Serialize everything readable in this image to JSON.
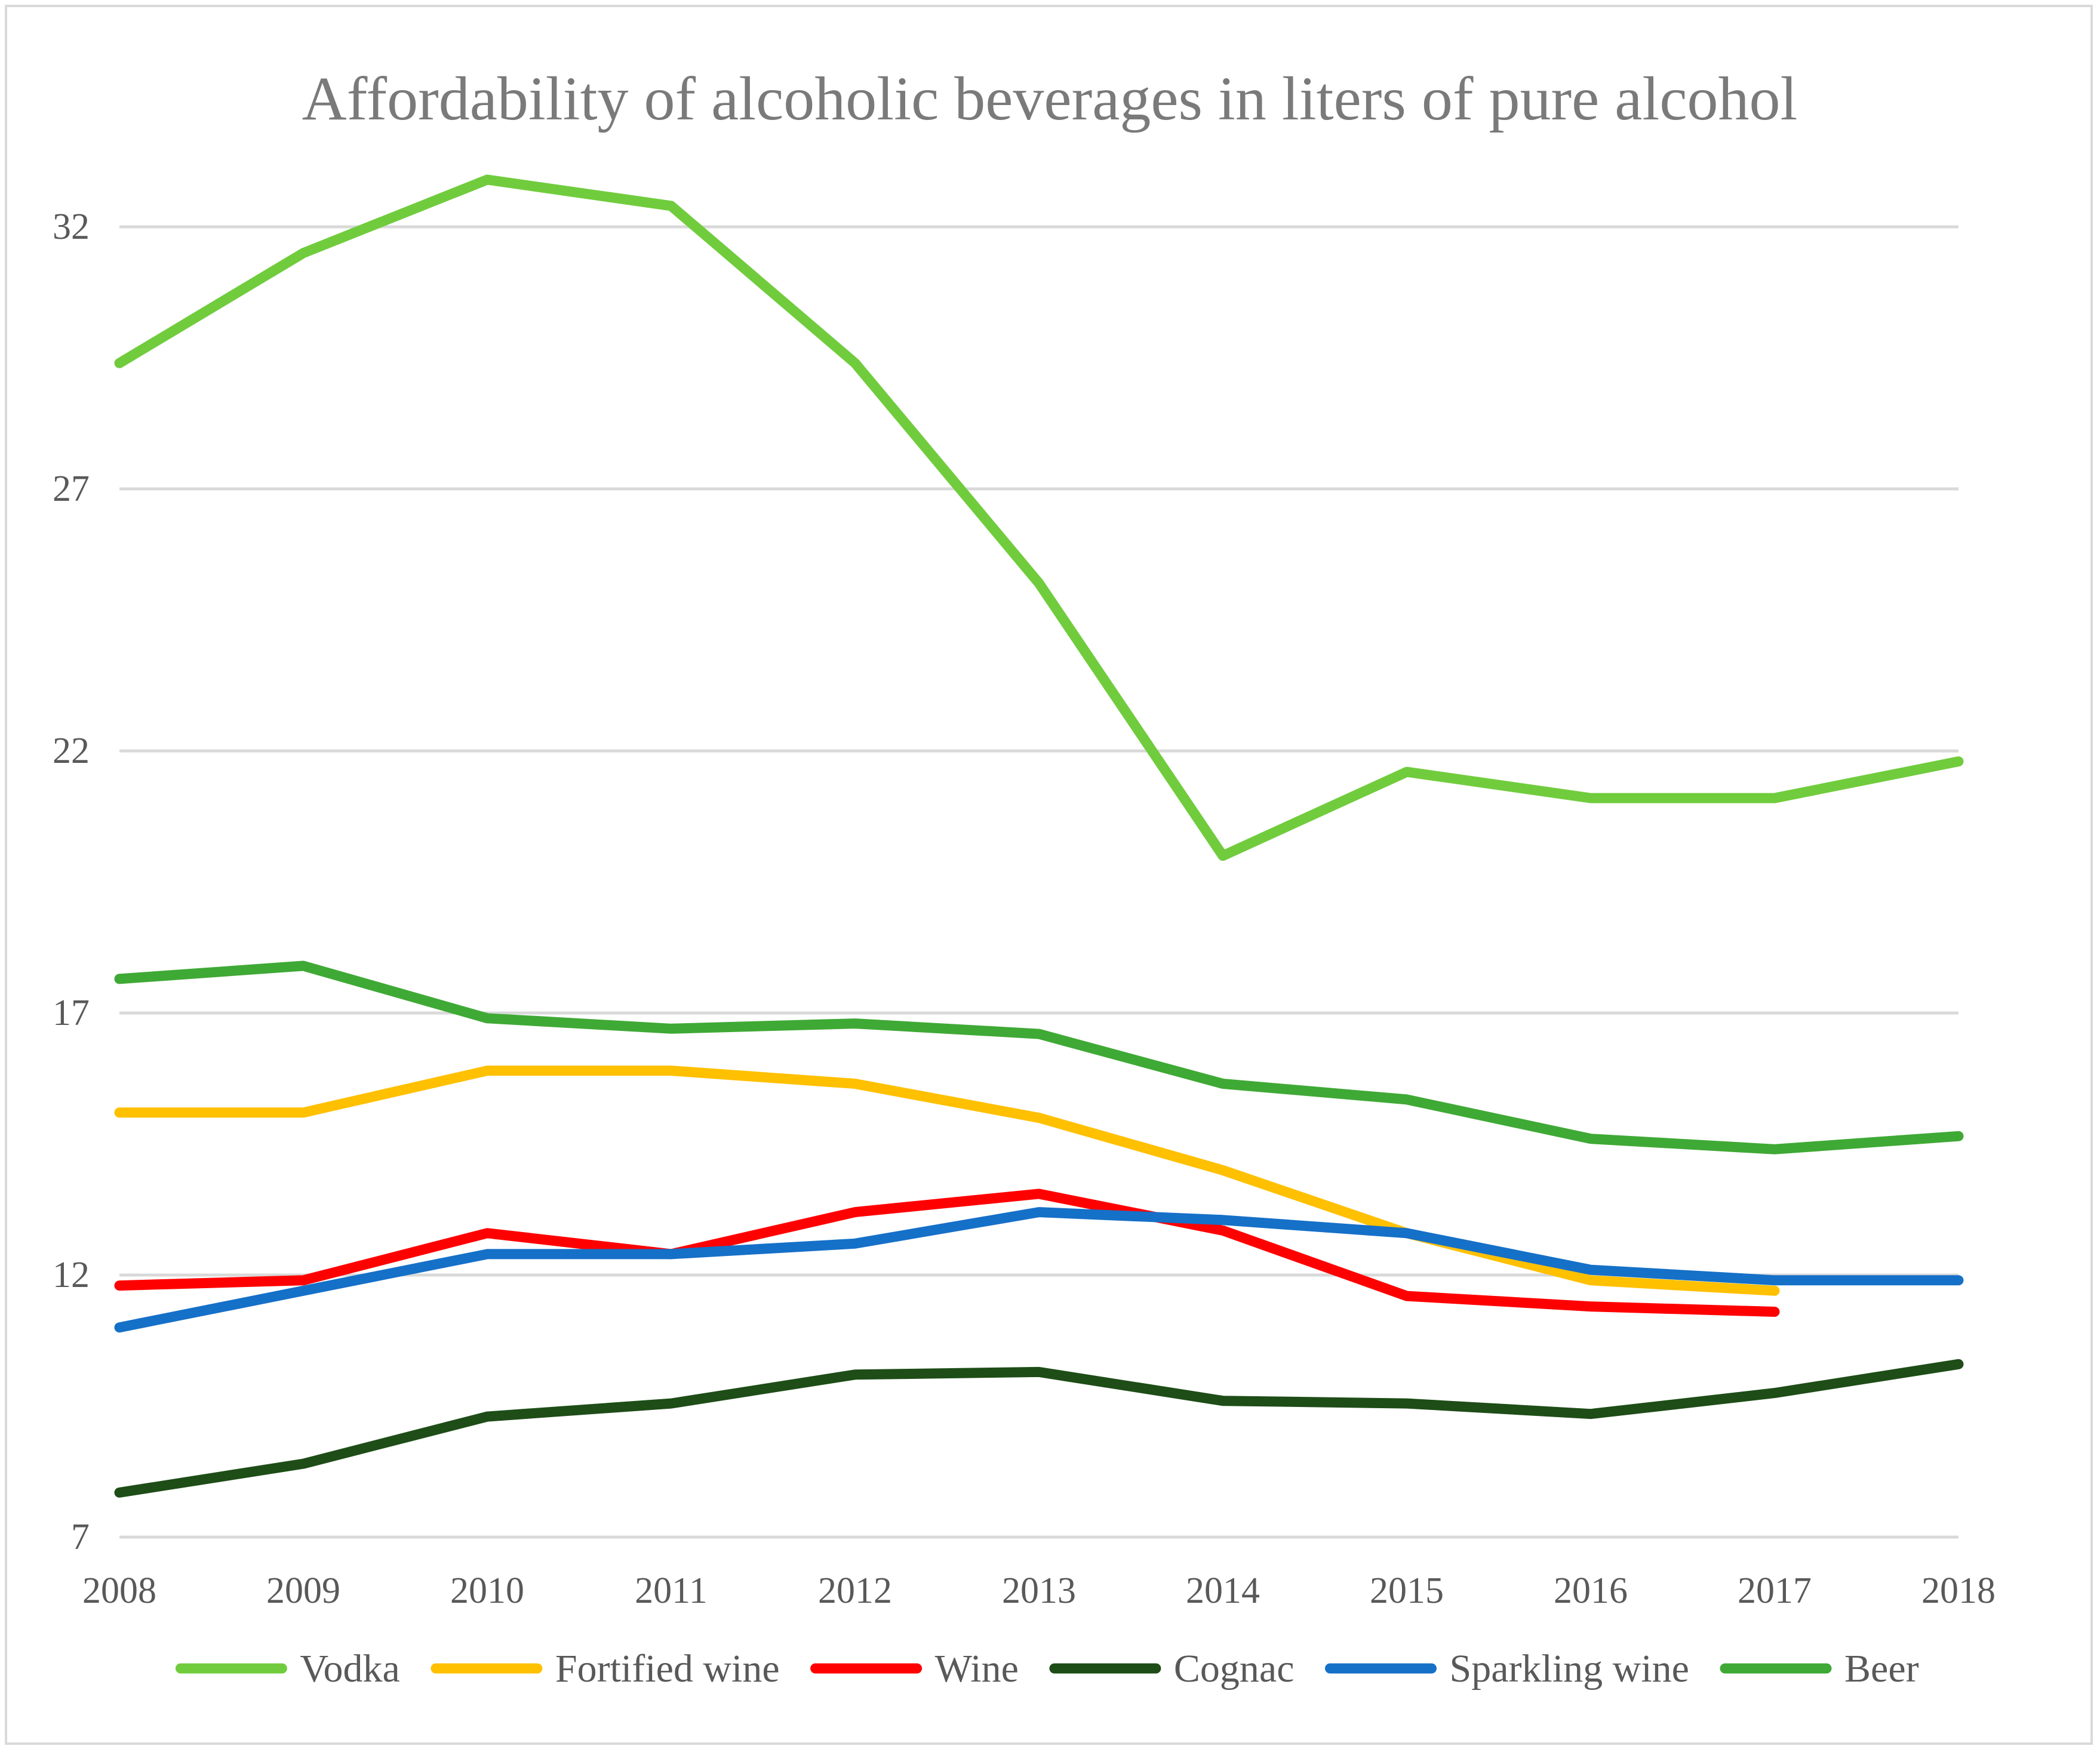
{
  "chart_data": {
    "type": "line",
    "title": "Affordability of alcoholic beverages in liters of  pure alcohol",
    "xlabel": "",
    "ylabel": "",
    "categories": [
      "2008",
      "2009",
      "2010",
      "2011",
      "2012",
      "2013",
      "2014",
      "2015",
      "2016",
      "2017",
      "2018"
    ],
    "yticks": [
      "7",
      "12",
      "17",
      "22",
      "27",
      "32"
    ],
    "ylim": [
      7,
      32
    ],
    "grid": true,
    "legend_position": "bottom",
    "series": [
      {
        "name": "Vodka",
        "color": "#70cc3c",
        "values": [
          29.4,
          31.5,
          32.9,
          32.4,
          29.4,
          25.2,
          20.0,
          21.6,
          21.1,
          21.1,
          21.8
        ]
      },
      {
        "name": "Fortified wine",
        "color": "#ffc000",
        "values": [
          15.1,
          15.1,
          15.9,
          15.9,
          15.65,
          15.0,
          14.0,
          12.8,
          11.9,
          11.7,
          null
        ]
      },
      {
        "name": "Wine",
        "color": "#ff0000",
        "values": [
          11.8,
          11.9,
          12.8,
          12.4,
          13.2,
          13.55,
          12.85,
          11.6,
          11.4,
          11.3,
          null
        ]
      },
      {
        "name": "Cognac",
        "color": "#1e4d17",
        "values": [
          7.85,
          8.4,
          9.3,
          9.55,
          10.1,
          10.15,
          9.6,
          9.55,
          9.35,
          9.75,
          10.3
        ]
      },
      {
        "name": "Sparkling wine",
        "color": "#1570c8",
        "values": [
          11.0,
          11.7,
          12.4,
          12.4,
          12.6,
          13.2,
          13.05,
          12.8,
          12.1,
          11.9,
          11.9
        ]
      },
      {
        "name": "Beer",
        "color": "#3fa935",
        "values": [
          17.65,
          17.9,
          16.9,
          16.7,
          16.8,
          16.6,
          15.65,
          15.35,
          14.6,
          14.4,
          14.65
        ]
      }
    ]
  }
}
